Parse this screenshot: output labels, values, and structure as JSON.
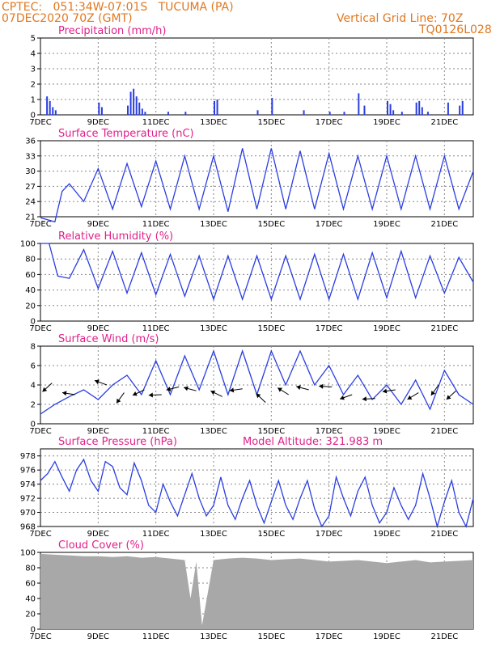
{
  "header": {
    "line1": "CPTEC:   051:34W-07:01S   TUCUMA (PA)",
    "line2": "07DEC2020 70Z (GMT)",
    "right1": "Vertical Grid Line: 70Z",
    "right2": "TQ0126L028"
  },
  "colors": {
    "header": "#e07820",
    "title": "#e0208a",
    "line": "#2a3ee0",
    "cloud": "#a8a8a8",
    "wind_arrow": "#000000"
  },
  "x_ticks": [
    "7DEC",
    "9DEC",
    "11DEC",
    "13DEC",
    "15DEC",
    "17DEC",
    "19DEC",
    "21DEC"
  ],
  "chart_data": [
    {
      "type": "bar",
      "title": "Precipitation (mm/h)",
      "ylim": [
        0,
        5
      ],
      "yticks": [
        0,
        1,
        2,
        3,
        4,
        5
      ],
      "x_range": [
        0,
        15
      ],
      "x": [
        0.2,
        0.3,
        0.4,
        0.5,
        2.0,
        2.1,
        3.0,
        3.1,
        3.2,
        3.3,
        3.4,
        3.5,
        3.6,
        4.4,
        5.0,
        6.0,
        6.1,
        7.5,
        8.0,
        9.1,
        10.0,
        10.5,
        11.0,
        11.2,
        12.0,
        12.1,
        12.2,
        12.5,
        13.0,
        13.1,
        13.2,
        13.4,
        14.1,
        14.5,
        14.6
      ],
      "values": [
        1.2,
        0.9,
        0.5,
        0.3,
        0.8,
        0.5,
        0.6,
        1.5,
        1.7,
        1.2,
        0.8,
        0.4,
        0.2,
        0.2,
        0.2,
        0.9,
        1.0,
        0.3,
        1.1,
        0.3,
        0.2,
        0.2,
        1.4,
        0.6,
        0.9,
        0.7,
        0.3,
        0.2,
        0.8,
        0.9,
        0.5,
        0.2,
        0.8,
        0.6,
        0.9
      ]
    },
    {
      "type": "line",
      "title": "Surface Temperature (nC)",
      "ylim": [
        21,
        36
      ],
      "yticks": [
        21,
        24,
        27,
        30,
        33,
        36
      ],
      "x_range": [
        0,
        15
      ],
      "x": [
        0,
        0.25,
        0.5,
        0.75,
        1.0,
        1.5,
        2.0,
        2.5,
        3.0,
        3.5,
        4.0,
        4.5,
        5.0,
        5.5,
        6.0,
        6.5,
        7.0,
        7.5,
        8.0,
        8.5,
        9.0,
        9.5,
        10.0,
        10.5,
        11.0,
        11.5,
        12.0,
        12.5,
        13.0,
        13.5,
        14.0,
        14.5,
        15.0
      ],
      "values": [
        20.8,
        20.4,
        20.0,
        26.0,
        27.5,
        24.0,
        30.5,
        22.5,
        31.5,
        23.0,
        32.0,
        22.5,
        33.0,
        22.5,
        33.0,
        22.0,
        34.5,
        22.5,
        34.5,
        22.5,
        34.0,
        22.5,
        33.5,
        22.5,
        33.0,
        22.5,
        33.0,
        22.5,
        33.0,
        22.5,
        33.0,
        22.5,
        30.0
      ]
    },
    {
      "type": "line",
      "title": "Relative Humidity (%)",
      "ylim": [
        0,
        100
      ],
      "yticks": [
        0,
        20,
        40,
        60,
        80,
        100
      ],
      "x_range": [
        0,
        15
      ],
      "x": [
        0,
        0.3,
        0.6,
        1.0,
        1.5,
        2.0,
        2.5,
        3.0,
        3.5,
        4.0,
        4.5,
        5.0,
        5.5,
        6.0,
        6.5,
        7.0,
        7.5,
        8.0,
        8.5,
        9.0,
        9.5,
        10.0,
        10.5,
        11.0,
        11.5,
        12.0,
        12.5,
        13.0,
        13.5,
        14.0,
        14.5,
        15.0
      ],
      "values": [
        100,
        100,
        58,
        55,
        92,
        42,
        90,
        36,
        88,
        34,
        86,
        32,
        84,
        28,
        84,
        28,
        84,
        28,
        84,
        28,
        86,
        28,
        86,
        28,
        88,
        30,
        90,
        30,
        84,
        36,
        82,
        50
      ]
    },
    {
      "type": "line",
      "title": "Surface Wind (m/s)",
      "ylim": [
        0,
        8
      ],
      "yticks": [
        0,
        2,
        4,
        6,
        8
      ],
      "x_range": [
        0,
        15
      ],
      "x": [
        0,
        0.5,
        1.0,
        1.5,
        2.0,
        2.5,
        3.0,
        3.5,
        4.0,
        4.5,
        5.0,
        5.5,
        6.0,
        6.5,
        7.0,
        7.5,
        8.0,
        8.5,
        9.0,
        9.5,
        10.0,
        10.5,
        11.0,
        11.5,
        12.0,
        12.5,
        13.0,
        13.5,
        14.0,
        14.5,
        15.0
      ],
      "values": [
        1.0,
        2.0,
        2.8,
        3.5,
        2.5,
        4.0,
        5.0,
        3.0,
        6.5,
        3.0,
        7.0,
        3.5,
        7.5,
        3.0,
        7.5,
        3.0,
        7.5,
        4.0,
        7.5,
        4.0,
        6.0,
        3.0,
        5.0,
        2.5,
        4.0,
        2.0,
        4.5,
        1.5,
        5.5,
        3.0,
        2.0
      ]
    },
    {
      "type": "line",
      "title": "Surface Pressure (hPa)",
      "annotation": "Model Altitude: 321.983 m",
      "ylim": [
        968,
        979
      ],
      "yticks": [
        968,
        970,
        972,
        974,
        976,
        978
      ],
      "x_range": [
        0,
        15
      ],
      "x": [
        0,
        0.25,
        0.5,
        0.75,
        1.0,
        1.25,
        1.5,
        1.75,
        2.0,
        2.25,
        2.5,
        2.75,
        3.0,
        3.25,
        3.5,
        3.75,
        4.0,
        4.25,
        4.5,
        4.75,
        5.0,
        5.25,
        5.5,
        5.75,
        6.0,
        6.25,
        6.5,
        6.75,
        7.0,
        7.25,
        7.5,
        7.75,
        8.0,
        8.25,
        8.5,
        8.75,
        9.0,
        9.25,
        9.5,
        9.75,
        10.0,
        10.25,
        10.5,
        10.75,
        11.0,
        11.25,
        11.5,
        11.75,
        12.0,
        12.25,
        12.5,
        12.75,
        13.0,
        13.25,
        13.5,
        13.75,
        14.0,
        14.25,
        14.5,
        14.75,
        15.0
      ],
      "values": [
        974.5,
        975.5,
        977.2,
        975.0,
        973.0,
        976.0,
        977.5,
        974.5,
        973.0,
        977.2,
        976.5,
        973.5,
        972.5,
        977.0,
        974.5,
        971.0,
        970.0,
        974.0,
        971.5,
        969.5,
        972.5,
        975.5,
        972.0,
        969.5,
        971.0,
        975.0,
        971.0,
        969.0,
        972.0,
        974.5,
        971.0,
        968.5,
        971.5,
        974.5,
        971.0,
        969.0,
        972.0,
        974.5,
        970.5,
        968.0,
        969.5,
        975.0,
        972.0,
        969.5,
        973.0,
        975.0,
        971.0,
        968.5,
        970.0,
        973.5,
        971.0,
        969.0,
        971.0,
        975.5,
        972.0,
        968.0,
        971.5,
        974.5,
        970.0,
        968.0,
        972.0
      ]
    },
    {
      "type": "area",
      "title": "Cloud Cover (%)",
      "ylim": [
        0,
        100
      ],
      "yticks": [
        0,
        20,
        40,
        60,
        80,
        100
      ],
      "x_range": [
        0,
        15
      ],
      "x": [
        0,
        0.5,
        1.0,
        1.5,
        2.0,
        2.5,
        3.0,
        3.5,
        4.0,
        4.5,
        5.0,
        5.2,
        5.4,
        5.6,
        6.0,
        6.5,
        7.0,
        7.5,
        8.0,
        8.5,
        9.0,
        9.5,
        10.0,
        10.5,
        11.0,
        11.5,
        12.0,
        12.5,
        13.0,
        13.5,
        14.0,
        14.5,
        15.0
      ],
      "values": [
        98,
        97,
        96,
        95,
        95,
        94,
        95,
        93,
        94,
        92,
        90,
        40,
        88,
        5,
        90,
        92,
        93,
        92,
        90,
        91,
        92,
        90,
        88,
        89,
        90,
        88,
        86,
        88,
        90,
        87,
        88,
        89,
        90
      ]
    }
  ]
}
